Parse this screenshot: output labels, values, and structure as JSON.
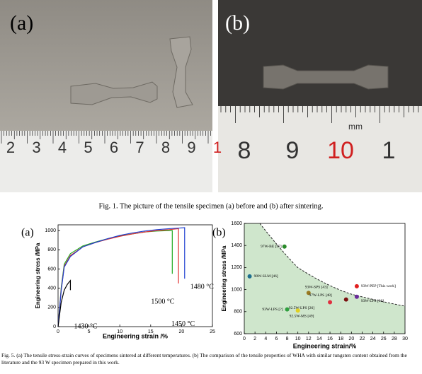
{
  "figure1": {
    "panel_a": {
      "label": "(a)",
      "ruler_labels": [
        "2",
        "3",
        "4",
        "5",
        "6",
        "7",
        "8",
        "9",
        "1"
      ]
    },
    "panel_b": {
      "label": "(b)",
      "ruler_labels": [
        "8",
        "9",
        "10",
        "1"
      ],
      "ruler_unit": "mm"
    },
    "caption": "Fig. 1. The picture of the tensile specimen (a) before and (b) after sintering."
  },
  "chart_data": [
    {
      "type": "line",
      "panel_label": "(a)",
      "xlabel": "Engineering strain /%",
      "ylabel": "Engineering stress /MPa",
      "xlim": [
        0,
        25
      ],
      "ylim": [
        0,
        1060
      ],
      "xticks": [
        0,
        5,
        10,
        15,
        20,
        25
      ],
      "yticks": [
        0,
        200,
        400,
        600,
        800,
        1000
      ],
      "series": [
        {
          "name": "1500 °C",
          "color": "#22aa22",
          "x": [
            0,
            0.5,
            1,
            2,
            4,
            6,
            8,
            10,
            12,
            14,
            16,
            18,
            18.5,
            18.5
          ],
          "values": [
            0,
            400,
            650,
            760,
            840,
            880,
            915,
            945,
            965,
            985,
            995,
            1000,
            1000,
            550
          ]
        },
        {
          "name": "1450 °C",
          "color": "#e03030",
          "x": [
            0,
            0.5,
            1,
            2,
            4,
            6,
            8,
            10,
            12,
            14,
            16,
            18,
            19.5,
            19.5
          ],
          "values": [
            0,
            380,
            630,
            740,
            830,
            875,
            910,
            940,
            965,
            985,
            1000,
            1010,
            1020,
            450
          ]
        },
        {
          "name": "1480 °C",
          "color": "#2040d0",
          "x": [
            0,
            0.5,
            1,
            2,
            4,
            6,
            8,
            10,
            12,
            14,
            16,
            18,
            20.5,
            20.5
          ],
          "values": [
            0,
            370,
            620,
            730,
            830,
            875,
            915,
            950,
            975,
            995,
            1010,
            1020,
            1030,
            500
          ]
        },
        {
          "name": "1430 °C",
          "color": "#000000",
          "x": [
            0,
            0.5,
            1,
            1.5,
            2,
            2
          ],
          "values": [
            0,
            250,
            380,
            440,
            480,
            380
          ]
        }
      ]
    },
    {
      "type": "scatter",
      "panel_label": "(b)",
      "xlabel": "Engineering strain/%",
      "ylabel": "Engineering stress /MPa",
      "xlim": [
        0,
        30
      ],
      "ylim": [
        600,
        1600
      ],
      "xticks": [
        0,
        2,
        4,
        6,
        8,
        10,
        12,
        14,
        16,
        18,
        20,
        22,
        24,
        26,
        28,
        30
      ],
      "yticks": [
        600,
        800,
        1000,
        1200,
        1400,
        1600
      ],
      "series": [
        {
          "name": "97W-BE [57]",
          "color": "#2a8a2a",
          "x": [
            7.5
          ],
          "values": [
            1390
          ]
        },
        {
          "name": "90W-SLM [46]",
          "color": "#1f6f8f",
          "x": [
            1
          ],
          "values": [
            1120
          ]
        },
        {
          "name": "93W-PEP [This work]",
          "color": "#e02020",
          "x": [
            21
          ],
          "values": [
            1030
          ]
        },
        {
          "name": "93W-SPS [43]",
          "color": "#9a7a20",
          "x": [
            12
          ],
          "values": [
            970
          ]
        },
        {
          "name": "97W-LPS [48]",
          "color": "#7a1010",
          "x": [
            19
          ],
          "values": [
            910
          ]
        },
        {
          "name": "93W-LPS [30]",
          "color": "#6a2a9a",
          "x": [
            21
          ],
          "values": [
            935
          ]
        },
        {
          "name": "92.5W-LPS [26]",
          "color": "#e03040",
          "x": [
            16
          ],
          "values": [
            885
          ]
        },
        {
          "name": "93W-LPS [?]",
          "color": "#30a040",
          "x": [
            8
          ],
          "values": [
            820
          ]
        },
        {
          "name": "92.5W-MS [49]",
          "color": "#e0d020",
          "x": [
            10
          ],
          "values": [
            810
          ]
        }
      ]
    }
  ],
  "figure5_caption": "Fig. 5. (a) The tensile stress-strain curves of specimens sintered at different temperatures. (b) The comparison of the tensile properties of WHA with similar tungsten content obtained from the literature and the 93 W specimen prepared in this work."
}
